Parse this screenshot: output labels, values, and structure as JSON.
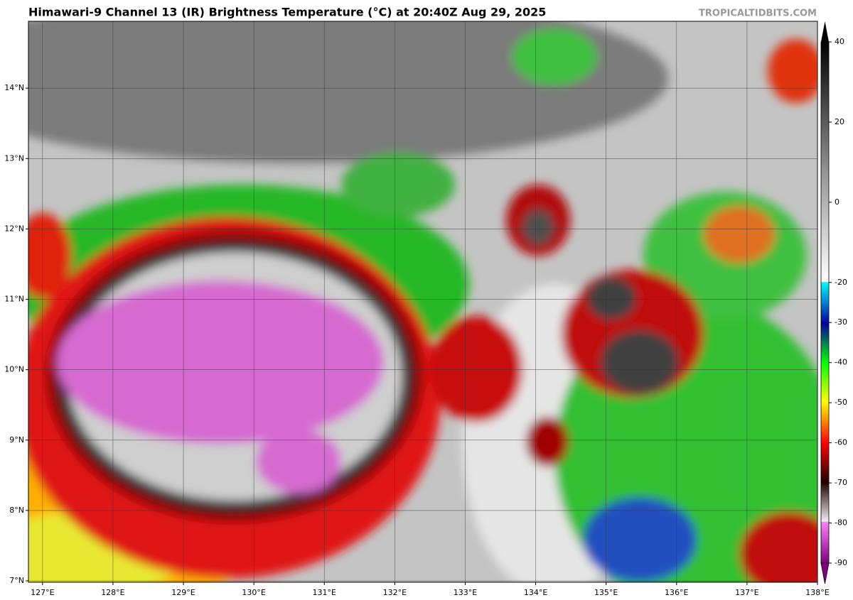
{
  "chart_data": {
    "type": "map",
    "title": "Himawari-9 Channel 13 (IR) Brightness Temperature (°C) at 20:40Z Aug 29, 2025",
    "credit": "TROPICALTIDBITS.COM",
    "xlim": [
      126.8,
      138
    ],
    "ylim": [
      6.98,
      14.95
    ],
    "xticks": [
      {
        "value": 127,
        "label": "127°E"
      },
      {
        "value": 128,
        "label": "128°E"
      },
      {
        "value": 129,
        "label": "129°E"
      },
      {
        "value": 130,
        "label": "130°E"
      },
      {
        "value": 131,
        "label": "131°E"
      },
      {
        "value": 132,
        "label": "132°E"
      },
      {
        "value": 133,
        "label": "133°E"
      },
      {
        "value": 134,
        "label": "134°E"
      },
      {
        "value": 135,
        "label": "135°E"
      },
      {
        "value": 136,
        "label": "136°E"
      },
      {
        "value": 137,
        "label": "137°E"
      },
      {
        "value": 138,
        "label": "138°E"
      }
    ],
    "yticks": [
      {
        "value": 7,
        "label": "7°N"
      },
      {
        "value": 8,
        "label": "8°N"
      },
      {
        "value": 9,
        "label": "9°N"
      },
      {
        "value": 10,
        "label": "10°N"
      },
      {
        "value": 11,
        "label": "11°N"
      },
      {
        "value": 12,
        "label": "12°N"
      },
      {
        "value": 13,
        "label": "13°N"
      },
      {
        "value": 14,
        "label": "14°N"
      }
    ],
    "grid": true,
    "colorbar": {
      "lim": [
        -90,
        40
      ],
      "ticks": [
        40,
        20,
        0,
        -20,
        -30,
        -40,
        -50,
        -60,
        -70,
        -80,
        -90
      ]
    }
  }
}
